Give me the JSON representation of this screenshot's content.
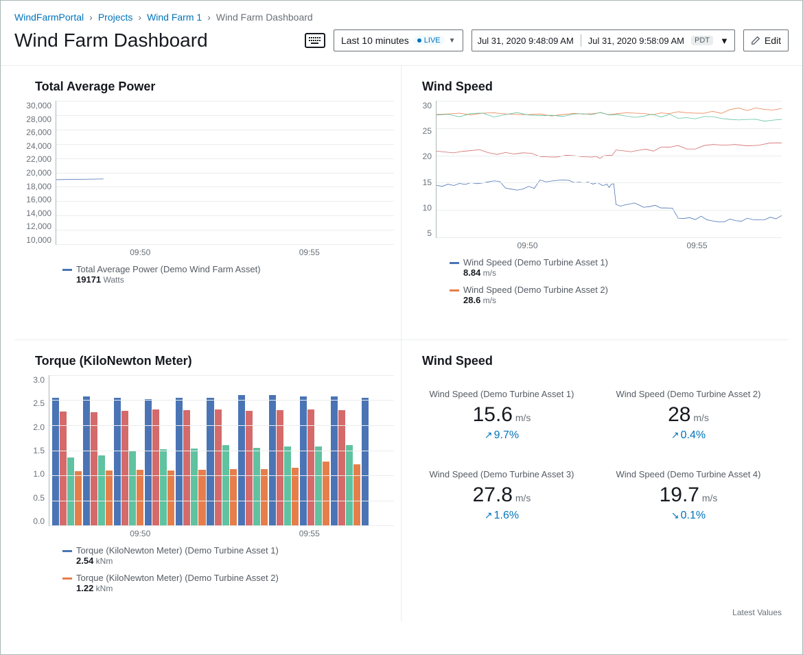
{
  "breadcrumb": {
    "items": [
      {
        "label": "WindFarmPortal"
      },
      {
        "label": "Projects"
      },
      {
        "label": "Wind Farm 1"
      }
    ],
    "current": "Wind Farm Dashboard"
  },
  "header": {
    "title": "Wind Farm Dashboard",
    "range_label": "Last 10 minutes",
    "live_badge": "LIVE",
    "start_time": "Jul 31, 2020 9:48:09 AM",
    "end_time": "Jul 31, 2020 9:58:09 AM",
    "timezone": "PDT",
    "edit_label": "Edit"
  },
  "colors": {
    "series1": "#4a74b5",
    "series2": "#e67e4b",
    "series3": "#5fc2a0",
    "series4": "#d46a6a",
    "grid": "#eaeded",
    "axis": "#aab7b8",
    "text_muted": "#687078",
    "link": "#0073bb"
  },
  "panels": {
    "power": {
      "title": "Total Average Power",
      "type": "line",
      "ylim": [
        10000,
        30000
      ],
      "ytick_step": 2000,
      "yticks": [
        "30,000",
        "28,000",
        "26,000",
        "24,000",
        "22,000",
        "20,000",
        "18,000",
        "16,000",
        "14,000",
        "12,000",
        "10,000"
      ],
      "xticks": [
        "09:50",
        "09:55"
      ],
      "series": [
        {
          "label": "Total Average Power (Demo Wind Farm Asset)",
          "value": "19171",
          "unit": "Watts",
          "color": "#4a74b5",
          "points": [
            [
              0,
              19000
            ],
            [
              0.14,
              19100
            ]
          ]
        }
      ]
    },
    "windspeed_chart": {
      "title": "Wind Speed",
      "type": "line",
      "ylim": [
        5,
        30
      ],
      "ytick_step": 5,
      "yticks": [
        "30",
        "25",
        "20",
        "15",
        "10",
        "5"
      ],
      "xticks": [
        "09:50",
        "09:55"
      ],
      "series": [
        {
          "label": "Wind Speed (Demo Turbine Asset 1)",
          "value": "8.84",
          "unit": "m/s",
          "color": "#4a74b5",
          "points": [
            [
              0,
              14.5
            ],
            [
              0.1,
              15
            ],
            [
              0.2,
              14
            ],
            [
              0.3,
              15.5
            ],
            [
              0.4,
              15
            ],
            [
              0.48,
              14.5
            ],
            [
              0.52,
              11
            ],
            [
              0.6,
              10.5
            ],
            [
              0.7,
              8.5
            ],
            [
              0.8,
              8
            ],
            [
              0.9,
              8.5
            ],
            [
              1,
              9
            ]
          ]
        },
        {
          "label": "Wind Speed (Demo Turbine Asset 2)",
          "value": "28.6",
          "unit": "m/s",
          "color": "#e67e4b",
          "points": [
            [
              0,
              27.5
            ],
            [
              0.2,
              27.6
            ],
            [
              0.4,
              27.7
            ],
            [
              0.55,
              27.8
            ],
            [
              0.7,
              28
            ],
            [
              0.85,
              28.4
            ],
            [
              1,
              28.6
            ]
          ]
        },
        {
          "label": "Wind Speed (Demo Turbine Asset 3)",
          "value": "",
          "unit": "m/s",
          "color": "#5fc2a0",
          "points": [
            [
              0,
              27.4
            ],
            [
              0.2,
              27.5
            ],
            [
              0.4,
              27.6
            ],
            [
              0.55,
              27.2
            ],
            [
              0.7,
              26.8
            ],
            [
              0.85,
              26.6
            ],
            [
              1,
              26.6
            ]
          ]
        },
        {
          "label": "Wind Speed (Demo Turbine Asset 4)",
          "value": "",
          "unit": "m/s",
          "color": "#d46a6a",
          "points": [
            [
              0,
              20.8
            ],
            [
              0.15,
              20.5
            ],
            [
              0.3,
              19.8
            ],
            [
              0.45,
              19.7
            ],
            [
              0.52,
              21
            ],
            [
              0.65,
              21.5
            ],
            [
              0.8,
              22
            ],
            [
              1,
              22.3
            ]
          ]
        }
      ]
    },
    "torque": {
      "title": "Torque (KiloNewton Meter)",
      "type": "bar",
      "ylim": [
        0,
        3.0
      ],
      "ytick_step": 0.5,
      "yticks": [
        "3.0",
        "2.5",
        "2.0",
        "1.5",
        "1.0",
        "0.5",
        "0.0"
      ],
      "xticks": [
        "09:50",
        "09:55"
      ],
      "bar_colors": [
        "#4a74b5",
        "#d46a6a",
        "#5fc2a0",
        "#e67e4b"
      ],
      "groups": [
        [
          2.55,
          2.28,
          1.35,
          1.08
        ],
        [
          2.58,
          2.26,
          1.4,
          1.09
        ],
        [
          2.55,
          2.29,
          1.5,
          1.11
        ],
        [
          2.52,
          2.31,
          1.52,
          1.1
        ],
        [
          2.55,
          2.3,
          1.54,
          1.11
        ],
        [
          2.55,
          2.31,
          1.6,
          1.13
        ],
        [
          2.6,
          2.29,
          1.55,
          1.13
        ],
        [
          2.6,
          2.3,
          1.58,
          1.15
        ],
        [
          2.58,
          2.31,
          1.58,
          1.28
        ],
        [
          2.57,
          2.3,
          1.6,
          1.22
        ],
        [
          2.55,
          0,
          0,
          0
        ]
      ],
      "series": [
        {
          "label": "Torque (KiloNewton Meter) (Demo Turbine Asset 1)",
          "value": "2.54",
          "unit": "kNm",
          "color": "#4a74b5"
        },
        {
          "label": "Torque (KiloNewton Meter) (Demo Turbine Asset 2)",
          "value": "1.22",
          "unit": "kNm",
          "color": "#e67e4b"
        }
      ]
    },
    "windspeed_kpi": {
      "title": "Wind Speed",
      "footer": "Latest Values",
      "cards": [
        {
          "label": "Wind Speed (Demo Turbine Asset 1)",
          "value": "15.6",
          "unit": "m/s",
          "delta": "9.7%",
          "direction": "up"
        },
        {
          "label": "Wind Speed (Demo Turbine Asset 2)",
          "value": "28",
          "unit": "m/s",
          "delta": "0.4%",
          "direction": "up"
        },
        {
          "label": "Wind Speed (Demo Turbine Asset 3)",
          "value": "27.8",
          "unit": "m/s",
          "delta": "1.6%",
          "direction": "up"
        },
        {
          "label": "Wind Speed (Demo Turbine Asset 4)",
          "value": "19.7",
          "unit": "m/s",
          "delta": "0.1%",
          "direction": "down"
        }
      ]
    }
  }
}
